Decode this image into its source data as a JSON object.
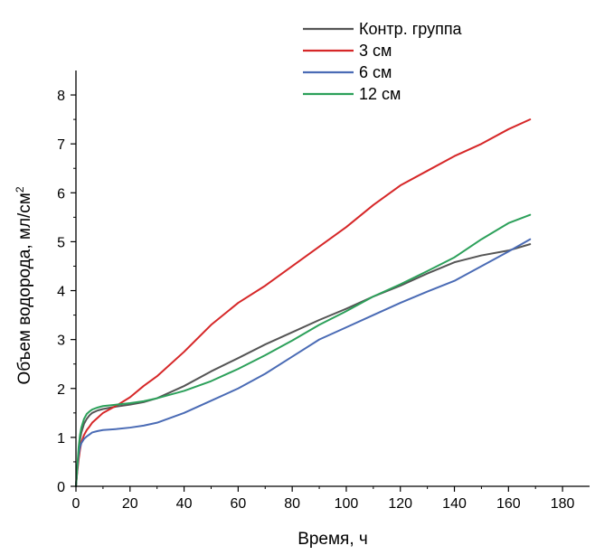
{
  "chart_data": {
    "type": "line",
    "xlabel": "Время, ч",
    "ylabel_main": "Объем водорода, мл/см",
    "ylabel_sup": "2",
    "xlim": [
      0,
      190
    ],
    "ylim": [
      0,
      8.5
    ],
    "xticks": [
      0,
      20,
      40,
      60,
      80,
      100,
      120,
      140,
      160,
      180
    ],
    "yticks": [
      0,
      1,
      2,
      3,
      4,
      5,
      6,
      7,
      8
    ],
    "grid": false,
    "legend_position": "top-right",
    "series": [
      {
        "name": "Контр. группа",
        "color": "#555555",
        "x": [
          0,
          0.5,
          1,
          1.5,
          2,
          3,
          4,
          5,
          6,
          8,
          10,
          12,
          15,
          20,
          25,
          30,
          40,
          50,
          60,
          70,
          80,
          90,
          100,
          110,
          120,
          130,
          140,
          150,
          160,
          168
        ],
        "y": [
          0,
          0.35,
          0.7,
          0.95,
          1.1,
          1.28,
          1.38,
          1.45,
          1.5,
          1.55,
          1.58,
          1.6,
          1.63,
          1.67,
          1.72,
          1.8,
          2.05,
          2.35,
          2.62,
          2.9,
          3.15,
          3.4,
          3.63,
          3.88,
          4.1,
          4.35,
          4.58,
          4.72,
          4.82,
          4.95
        ]
      },
      {
        "name": "3 см",
        "color": "#d62728",
        "x": [
          0,
          0.5,
          1,
          1.5,
          2,
          3,
          4,
          5,
          6,
          8,
          10,
          15,
          20,
          25,
          30,
          40,
          50,
          60,
          70,
          80,
          90,
          100,
          110,
          120,
          130,
          140,
          150,
          160,
          168
        ],
        "y": [
          0,
          0.3,
          0.55,
          0.75,
          0.9,
          1.05,
          1.15,
          1.22,
          1.3,
          1.4,
          1.5,
          1.65,
          1.82,
          2.05,
          2.25,
          2.75,
          3.3,
          3.75,
          4.1,
          4.5,
          4.9,
          5.3,
          5.75,
          6.15,
          6.45,
          6.75,
          7.0,
          7.3,
          7.5
        ]
      },
      {
        "name": "6 см",
        "color": "#4a6bb5",
        "x": [
          0,
          0.5,
          1,
          1.5,
          2,
          3,
          4,
          5,
          6,
          8,
          10,
          15,
          20,
          25,
          30,
          40,
          50,
          60,
          70,
          80,
          90,
          100,
          110,
          120,
          130,
          140,
          150,
          160,
          168
        ],
        "y": [
          0,
          0.35,
          0.65,
          0.8,
          0.88,
          0.97,
          1.02,
          1.06,
          1.1,
          1.13,
          1.15,
          1.17,
          1.2,
          1.24,
          1.3,
          1.5,
          1.75,
          2.0,
          2.3,
          2.65,
          3.0,
          3.25,
          3.5,
          3.75,
          3.98,
          4.2,
          4.5,
          4.8,
          5.05
        ]
      },
      {
        "name": "12 см",
        "color": "#2ca05a",
        "x": [
          0,
          0.5,
          1,
          1.5,
          2,
          3,
          4,
          5,
          6,
          8,
          10,
          15,
          20,
          25,
          30,
          40,
          50,
          60,
          70,
          80,
          90,
          100,
          110,
          120,
          130,
          140,
          150,
          160,
          168
        ],
        "y": [
          0,
          0.4,
          0.8,
          1.05,
          1.2,
          1.38,
          1.48,
          1.53,
          1.57,
          1.61,
          1.64,
          1.67,
          1.7,
          1.74,
          1.8,
          1.95,
          2.15,
          2.4,
          2.68,
          2.98,
          3.3,
          3.58,
          3.88,
          4.13,
          4.4,
          4.68,
          5.05,
          5.38,
          5.55
        ]
      }
    ]
  }
}
